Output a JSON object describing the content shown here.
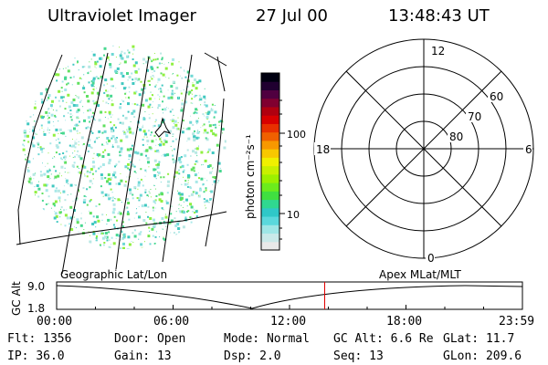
{
  "header": {
    "title": "Ultraviolet Imager",
    "date": "27 Jul 00",
    "time": "13:48:43 UT"
  },
  "colorbar": {
    "unit_label": "photon cm⁻²s⁻¹",
    "tick_labels": [
      "100",
      "10"
    ],
    "colors": [
      "#e9e9e9",
      "#c9e9e9",
      "#9ee6e6",
      "#5ad8dc",
      "#2fc8c8",
      "#30d890",
      "#40e040",
      "#6cec1c",
      "#9cf000",
      "#c8f000",
      "#f0f000",
      "#f8c800",
      "#f89800",
      "#f06000",
      "#e83000",
      "#d80000",
      "#b00010",
      "#800030",
      "#500040",
      "#200030",
      "#000010"
    ]
  },
  "polar_plot": {
    "mlt_labels": {
      "top": "12",
      "left": "18",
      "right": "6",
      "bottom": "0"
    },
    "lat_labels": [
      "60",
      "70",
      "80"
    ]
  },
  "timeline": {
    "left_title": "Geographic Lat/Lon",
    "right_title": "Apex MLat/MLT",
    "y_axis_label": "GC Alt",
    "y_ticks": [
      "9.0",
      "1.8"
    ],
    "x_ticks": [
      "00:00",
      "06:00",
      "12:00",
      "18:00",
      "23:59"
    ],
    "marker_time_hours": 13.81,
    "marker_color": "#e00000"
  },
  "status": {
    "row1": [
      {
        "label": "Flt:",
        "value": "1356"
      },
      {
        "label": "Door:",
        "value": "Open"
      },
      {
        "label": "Mode:",
        "value": "Normal"
      },
      {
        "label": "GC Alt:",
        "value": "6.6 Re"
      },
      {
        "label": "GLat:",
        "value": "11.7"
      }
    ],
    "row2": [
      {
        "label": "IP:",
        "value": "36.0"
      },
      {
        "label": "Gain:",
        "value": "13"
      },
      {
        "label": "Dsp:",
        "value": "2.0"
      },
      {
        "label": "Seq:",
        "value": "13"
      },
      {
        "label": "GLon:",
        "value": "209.6"
      }
    ]
  }
}
